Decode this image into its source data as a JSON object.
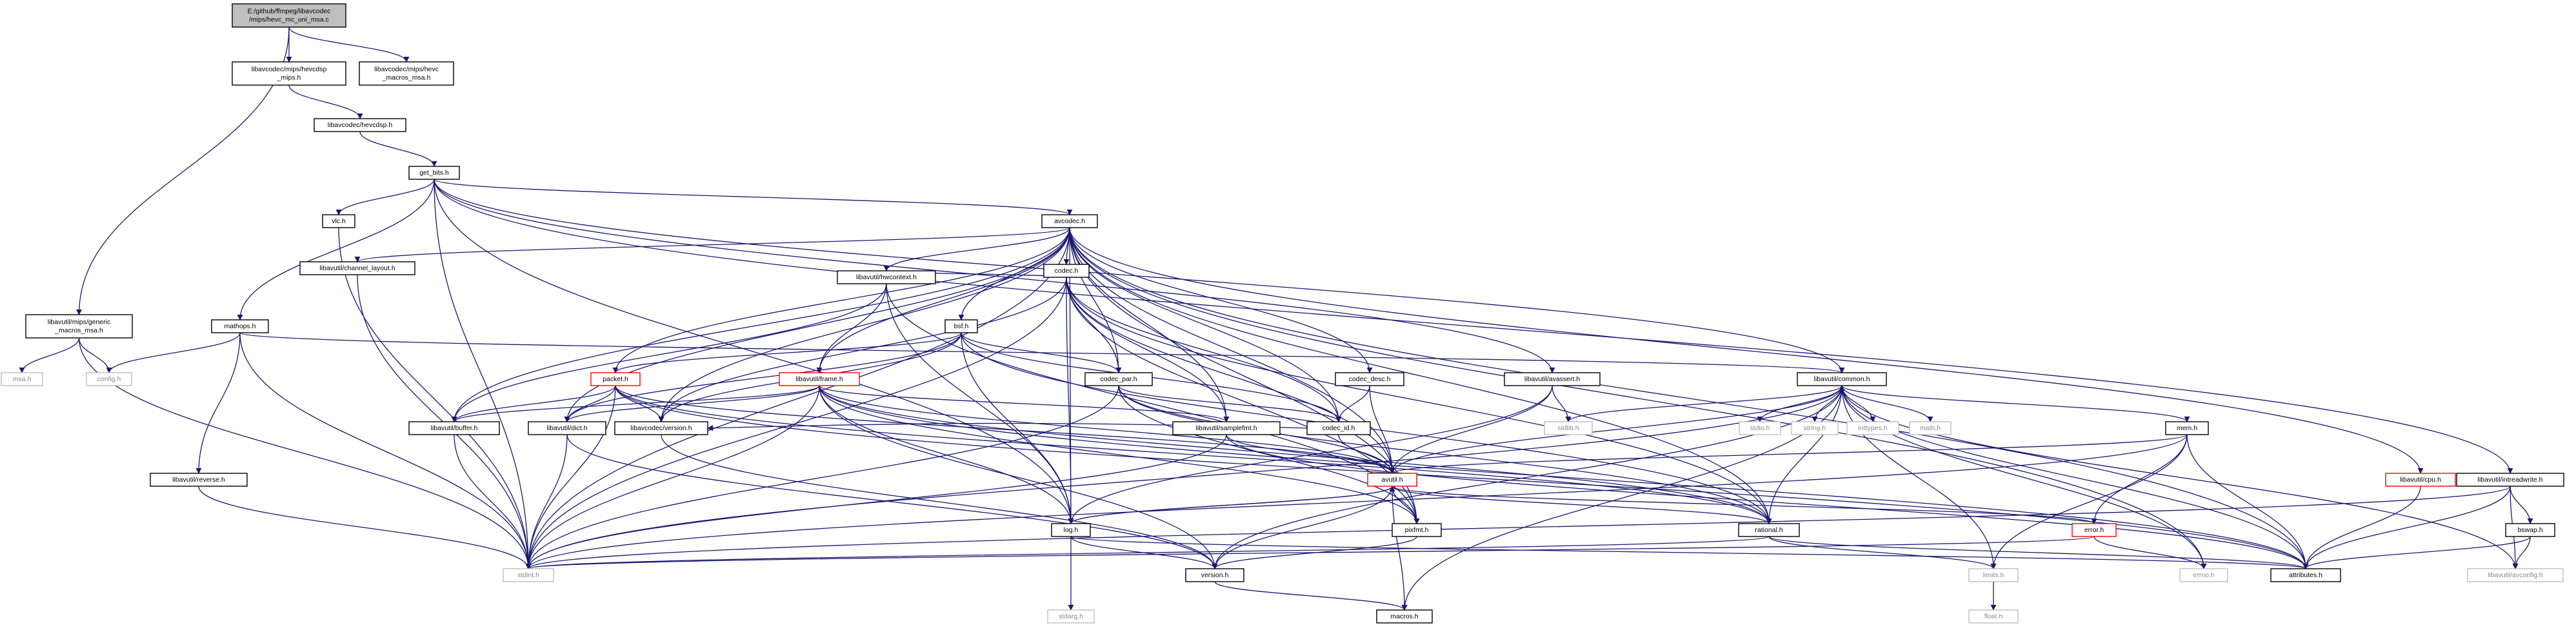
{
  "colors": {
    "edge": "#191970",
    "node_border": "#000000",
    "root_fill": "#bfbfbf",
    "missing_border": "#ff0000",
    "external_border": "#bfbfbf",
    "external_text": "#8a8a8a"
  },
  "nodes": [
    {
      "id": "root",
      "lines": [
        "E:/github/ffmpeg/libavcodec",
        "/mips/hevc_mc_uni_msa.c"
      ],
      "kind": "root"
    },
    {
      "id": "hevcdsp_mips",
      "lines": [
        "libavcodec/mips/hevcdsp",
        "_mips.h"
      ],
      "kind": "normal"
    },
    {
      "id": "hevc_macros",
      "lines": [
        "libavcodec/mips/hevc",
        "_macros_msa.h"
      ],
      "kind": "normal"
    },
    {
      "id": "hevcdsp",
      "lines": [
        "libavcodec/hevcdsp.h"
      ],
      "kind": "normal"
    },
    {
      "id": "get_bits",
      "lines": [
        "get_bits.h"
      ],
      "kind": "normal"
    },
    {
      "id": "vlc",
      "lines": [
        "vlc.h"
      ],
      "kind": "normal"
    },
    {
      "id": "avcodec",
      "lines": [
        "avcodec.h"
      ],
      "kind": "normal"
    },
    {
      "id": "generic_macros",
      "lines": [
        "libavutil/mips/generic",
        "_macros_msa.h"
      ],
      "kind": "normal"
    },
    {
      "id": "msa",
      "lines": [
        "msa.h"
      ],
      "kind": "external"
    },
    {
      "id": "config",
      "lines": [
        "config.h"
      ],
      "kind": "external"
    },
    {
      "id": "mathops",
      "lines": [
        "mathops.h"
      ],
      "kind": "normal"
    },
    {
      "id": "channel_layout",
      "lines": [
        "libavutil/channel_layout.h"
      ],
      "kind": "normal"
    },
    {
      "id": "codec",
      "lines": [
        "codec.h"
      ],
      "kind": "normal"
    },
    {
      "id": "hwcontext",
      "lines": [
        "libavutil/hwcontext.h"
      ],
      "kind": "normal"
    },
    {
      "id": "bsf",
      "lines": [
        "bsf.h"
      ],
      "kind": "normal"
    },
    {
      "id": "packet",
      "lines": [
        "packet.h"
      ],
      "kind": "missing"
    },
    {
      "id": "frame",
      "lines": [
        "libavutil/frame.h"
      ],
      "kind": "missing"
    },
    {
      "id": "codec_par",
      "lines": [
        "codec_par.h"
      ],
      "kind": "normal"
    },
    {
      "id": "codec_desc",
      "lines": [
        "codec_desc.h"
      ],
      "kind": "normal"
    },
    {
      "id": "avassert",
      "lines": [
        "libavutil/avassert.h"
      ],
      "kind": "normal"
    },
    {
      "id": "common",
      "lines": [
        "libavutil/common.h"
      ],
      "kind": "normal"
    },
    {
      "id": "cpu",
      "lines": [
        "libavutil/cpu.h"
      ],
      "kind": "missing"
    },
    {
      "id": "intreadwrite",
      "lines": [
        "libavutil/intreadwrite.h"
      ],
      "kind": "normal"
    },
    {
      "id": "buffer",
      "lines": [
        "libavutil/buffer.h"
      ],
      "kind": "normal"
    },
    {
      "id": "dict",
      "lines": [
        "libavutil/dict.h"
      ],
      "kind": "normal"
    },
    {
      "id": "version_codec",
      "lines": [
        "libavcodec/version.h"
      ],
      "kind": "normal"
    },
    {
      "id": "samplefmt",
      "lines": [
        "libavutil/samplefmt.h"
      ],
      "kind": "normal"
    },
    {
      "id": "codec_id",
      "lines": [
        "codec_id.h"
      ],
      "kind": "normal"
    },
    {
      "id": "stdlib",
      "lines": [
        "stdlib.h"
      ],
      "kind": "external"
    },
    {
      "id": "stdio",
      "lines": [
        "stdio.h"
      ],
      "kind": "external"
    },
    {
      "id": "string",
      "lines": [
        "string.h"
      ],
      "kind": "external"
    },
    {
      "id": "inttypes",
      "lines": [
        "inttypes.h"
      ],
      "kind": "external"
    },
    {
      "id": "math",
      "lines": [
        "math.h"
      ],
      "kind": "external"
    },
    {
      "id": "mem",
      "lines": [
        "mem.h"
      ],
      "kind": "normal"
    },
    {
      "id": "reverse",
      "lines": [
        "libavutil/reverse.h"
      ],
      "kind": "normal"
    },
    {
      "id": "avutil",
      "lines": [
        "avutil.h"
      ],
      "kind": "missing"
    },
    {
      "id": "log",
      "lines": [
        "log.h"
      ],
      "kind": "normal"
    },
    {
      "id": "pixfmt",
      "lines": [
        "pixfmt.h"
      ],
      "kind": "normal"
    },
    {
      "id": "rational",
      "lines": [
        "rational.h"
      ],
      "kind": "normal"
    },
    {
      "id": "error",
      "lines": [
        "error.h"
      ],
      "kind": "missing"
    },
    {
      "id": "bswap",
      "lines": [
        "bswap.h"
      ],
      "kind": "normal"
    },
    {
      "id": "stdint",
      "lines": [
        "stdint.h"
      ],
      "kind": "external"
    },
    {
      "id": "stdarg",
      "lines": [
        "stdarg.h"
      ],
      "kind": "external"
    },
    {
      "id": "version",
      "lines": [
        "version.h"
      ],
      "kind": "normal"
    },
    {
      "id": "limits",
      "lines": [
        "limits.h"
      ],
      "kind": "external"
    },
    {
      "id": "errno",
      "lines": [
        "errno.h"
      ],
      "kind": "external"
    },
    {
      "id": "attributes",
      "lines": [
        "attributes.h"
      ],
      "kind": "normal"
    },
    {
      "id": "avconfig",
      "lines": [
        "libavutil/avconfig.h"
      ],
      "kind": "external"
    },
    {
      "id": "macros",
      "lines": [
        "macros.h"
      ],
      "kind": "normal"
    },
    {
      "id": "float",
      "lines": [
        "float.h"
      ],
      "kind": "external"
    }
  ],
  "edges": [
    [
      "root",
      "hevcdsp_mips"
    ],
    [
      "root",
      "hevc_macros"
    ],
    [
      "root",
      "generic_macros"
    ],
    [
      "hevcdsp_mips",
      "hevcdsp"
    ],
    [
      "hevcdsp",
      "get_bits"
    ],
    [
      "get_bits",
      "vlc"
    ],
    [
      "get_bits",
      "avcodec"
    ],
    [
      "get_bits",
      "mathops"
    ],
    [
      "get_bits",
      "stdint"
    ],
    [
      "get_bits",
      "log"
    ],
    [
      "get_bits",
      "avassert"
    ],
    [
      "get_bits",
      "common"
    ],
    [
      "get_bits",
      "intreadwrite"
    ],
    [
      "vlc",
      "stdint"
    ],
    [
      "generic_macros",
      "msa"
    ],
    [
      "generic_macros",
      "config"
    ],
    [
      "generic_macros",
      "stdint"
    ],
    [
      "mathops",
      "config"
    ],
    [
      "mathops",
      "reverse"
    ],
    [
      "mathops",
      "common"
    ],
    [
      "mathops",
      "stdint"
    ],
    [
      "reverse",
      "stdint"
    ],
    [
      "avcodec",
      "channel_layout"
    ],
    [
      "avcodec",
      "codec"
    ],
    [
      "avcodec",
      "hwcontext"
    ],
    [
      "avcodec",
      "bsf"
    ],
    [
      "avcodec",
      "packet"
    ],
    [
      "avcodec",
      "frame"
    ],
    [
      "avcodec",
      "codec_par"
    ],
    [
      "avcodec",
      "codec_desc"
    ],
    [
      "avcodec",
      "cpu"
    ],
    [
      "avcodec",
      "buffer"
    ],
    [
      "avcodec",
      "dict"
    ],
    [
      "avcodec",
      "version_codec"
    ],
    [
      "avcodec",
      "samplefmt"
    ],
    [
      "avcodec",
      "codec_id"
    ],
    [
      "avcodec",
      "avutil"
    ],
    [
      "avcodec",
      "log"
    ],
    [
      "avcodec",
      "rational"
    ],
    [
      "avcodec",
      "pixfmt"
    ],
    [
      "avcodec",
      "attributes"
    ],
    [
      "avcodec",
      "errno"
    ],
    [
      "avcodec",
      "stdint"
    ],
    [
      "channel_layout",
      "stdint"
    ],
    [
      "codec",
      "codec_id"
    ],
    [
      "codec",
      "codec_par"
    ],
    [
      "codec",
      "hwcontext"
    ],
    [
      "codec",
      "samplefmt"
    ],
    [
      "codec",
      "pixfmt"
    ],
    [
      "codec",
      "rational"
    ],
    [
      "codec",
      "avutil"
    ],
    [
      "codec",
      "log"
    ],
    [
      "codec",
      "version_codec"
    ],
    [
      "codec",
      "stdint"
    ],
    [
      "hwcontext",
      "frame"
    ],
    [
      "hwcontext",
      "buffer"
    ],
    [
      "hwcontext",
      "pixfmt"
    ],
    [
      "hwcontext",
      "log"
    ],
    [
      "bsf",
      "packet"
    ],
    [
      "bsf",
      "codec_par"
    ],
    [
      "bsf",
      "codec_id"
    ],
    [
      "bsf",
      "dict"
    ],
    [
      "bsf",
      "log"
    ],
    [
      "bsf",
      "rational"
    ],
    [
      "bsf",
      "version_codec"
    ],
    [
      "packet",
      "buffer"
    ],
    [
      "packet",
      "dict"
    ],
    [
      "packet",
      "version_codec"
    ],
    [
      "packet",
      "stdint"
    ],
    [
      "packet",
      "avutil"
    ],
    [
      "packet",
      "rational"
    ],
    [
      "packet",
      "attributes"
    ],
    [
      "frame",
      "buffer"
    ],
    [
      "frame",
      "dict"
    ],
    [
      "frame",
      "samplefmt"
    ],
    [
      "frame",
      "avutil"
    ],
    [
      "frame",
      "log"
    ],
    [
      "frame",
      "pixfmt"
    ],
    [
      "frame",
      "rational"
    ],
    [
      "frame",
      "attributes"
    ],
    [
      "frame",
      "stdint"
    ],
    [
      "frame",
      "version"
    ],
    [
      "codec_par",
      "codec_id"
    ],
    [
      "codec_par",
      "avutil"
    ],
    [
      "codec_par",
      "rational"
    ],
    [
      "codec_par",
      "pixfmt"
    ],
    [
      "codec_par",
      "stdint"
    ],
    [
      "codec_desc",
      "codec_id"
    ],
    [
      "codec_desc",
      "avutil"
    ],
    [
      "avassert",
      "stdlib"
    ],
    [
      "avassert",
      "avutil"
    ],
    [
      "avassert",
      "log"
    ],
    [
      "common",
      "stdio"
    ],
    [
      "common",
      "string"
    ],
    [
      "common",
      "inttypes"
    ],
    [
      "common",
      "math"
    ],
    [
      "common",
      "stdlib"
    ],
    [
      "common",
      "mem"
    ],
    [
      "common",
      "attributes"
    ],
    [
      "common",
      "errno"
    ],
    [
      "common",
      "limits"
    ],
    [
      "common",
      "stdint"
    ],
    [
      "common",
      "macros"
    ],
    [
      "common",
      "avconfig"
    ],
    [
      "common",
      "version"
    ],
    [
      "cpu",
      "attributes"
    ],
    [
      "intreadwrite",
      "bswap"
    ],
    [
      "intreadwrite",
      "attributes"
    ],
    [
      "intreadwrite",
      "avconfig"
    ],
    [
      "intreadwrite",
      "stdint"
    ],
    [
      "bswap",
      "attributes"
    ],
    [
      "bswap",
      "avconfig"
    ],
    [
      "buffer",
      "stdint"
    ],
    [
      "dict",
      "stdint"
    ],
    [
      "dict",
      "version"
    ],
    [
      "version_codec",
      "version"
    ],
    [
      "samplefmt",
      "avutil"
    ],
    [
      "samplefmt",
      "attributes"
    ],
    [
      "samplefmt",
      "stdint"
    ],
    [
      "codec_id",
      "avutil"
    ],
    [
      "codec_id",
      "version_codec"
    ],
    [
      "mem",
      "avutil"
    ],
    [
      "mem",
      "error"
    ],
    [
      "mem",
      "attributes"
    ],
    [
      "mem",
      "limits"
    ],
    [
      "mem",
      "stdint"
    ],
    [
      "avutil",
      "common"
    ],
    [
      "avutil",
      "log"
    ],
    [
      "avutil",
      "pixfmt"
    ],
    [
      "avutil",
      "rational"
    ],
    [
      "avutil",
      "error"
    ],
    [
      "avutil",
      "version"
    ],
    [
      "avutil",
      "macros"
    ],
    [
      "log",
      "avutil"
    ],
    [
      "log",
      "stdarg"
    ],
    [
      "log",
      "version"
    ],
    [
      "log",
      "attributes"
    ],
    [
      "pixfmt",
      "avutil"
    ],
    [
      "pixfmt",
      "version"
    ],
    [
      "rational",
      "common"
    ],
    [
      "rational",
      "limits"
    ],
    [
      "rational",
      "attributes"
    ],
    [
      "rational",
      "stdint"
    ],
    [
      "error",
      "errno"
    ],
    [
      "error",
      "stdint"
    ],
    [
      "version",
      "macros"
    ],
    [
      "limits",
      "float"
    ]
  ]
}
